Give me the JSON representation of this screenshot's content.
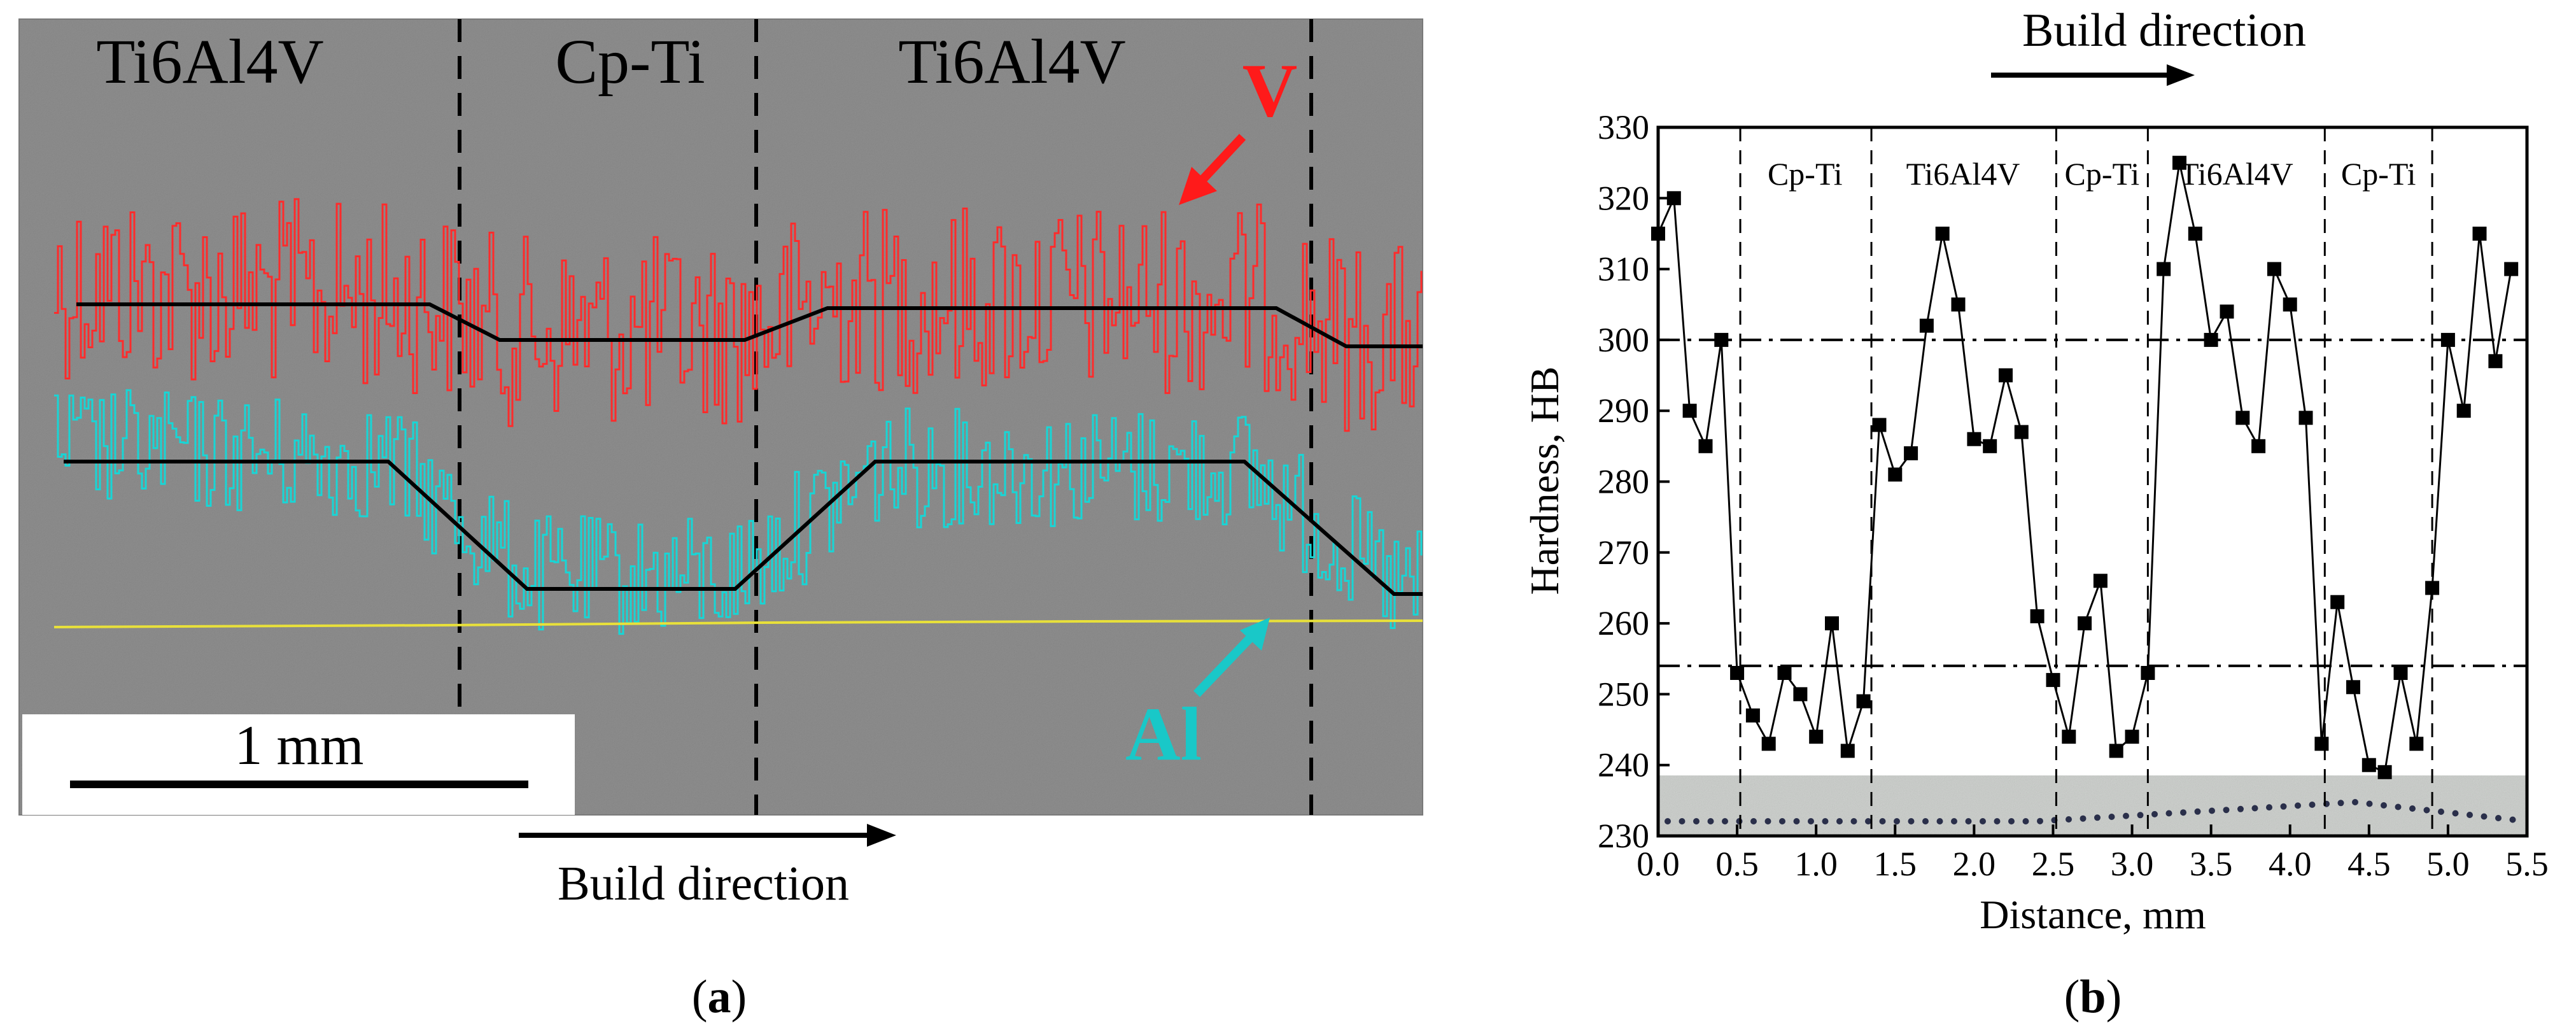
{
  "figure": {
    "panel_a": {
      "caption": "a",
      "regions": [
        "Ti6Al4V",
        "Cp-Ti",
        "Ti6Al4V"
      ],
      "scale_bar": "1 mm",
      "build_direction": "Build direction",
      "element_labels": {
        "v": "V",
        "al": "Al"
      },
      "colors": {
        "v_signal": "#ff2b2b",
        "al_signal": "#17d6d6",
        "baseline": "#e8e03a",
        "background": "#8f8f8f",
        "trend": "#000000"
      }
    },
    "panel_b": {
      "caption": "b"
    }
  },
  "chart_data": [
    {
      "type": "line",
      "title": "",
      "build_direction": "Build direction",
      "xlabel": "Distance, mm",
      "ylabel": "Hardness, HB",
      "xlim": [
        0,
        5.5
      ],
      "ylim": [
        230,
        330
      ],
      "xticks": [
        0.0,
        0.5,
        1.0,
        1.5,
        2.0,
        2.5,
        3.0,
        3.5,
        4.0,
        4.5,
        5.0,
        5.5
      ],
      "xtick_labels": [
        "0.0",
        "0.5",
        "1.0",
        "1.5",
        "2.0",
        "2.5",
        "3.0",
        "3.5",
        "4.0",
        "4.5",
        "5.0",
        "5.5"
      ],
      "yticks": [
        230,
        240,
        250,
        260,
        270,
        280,
        290,
        300,
        310,
        320,
        330
      ],
      "ytick_labels": [
        "230",
        "240",
        "250",
        "260",
        "270",
        "280",
        "290",
        "300",
        "310",
        "320",
        "330"
      ],
      "reference_lines_y": [
        300,
        254
      ],
      "region_boundaries_x": [
        0.52,
        1.35,
        2.52,
        3.1,
        4.22,
        4.9
      ],
      "region_labels": [
        {
          "text": "Cp-Ti",
          "x": 0.93
        },
        {
          "text": "Ti6Al4V",
          "x": 1.93
        },
        {
          "text": "Cp-Ti",
          "x": 2.81
        },
        {
          "text": "Ti6Al4V",
          "x": 3.66
        },
        {
          "text": "Cp-Ti",
          "x": 4.56
        }
      ],
      "series": [
        {
          "name": "Hardness",
          "x": [
            0.0,
            0.1,
            0.2,
            0.3,
            0.4,
            0.5,
            0.6,
            0.7,
            0.8,
            0.9,
            1.0,
            1.1,
            1.2,
            1.3,
            1.4,
            1.5,
            1.6,
            1.7,
            1.8,
            1.9,
            2.0,
            2.1,
            2.2,
            2.3,
            2.4,
            2.5,
            2.6,
            2.7,
            2.8,
            2.9,
            3.0,
            3.1,
            3.2,
            3.3,
            3.4,
            3.5,
            3.6,
            3.7,
            3.8,
            3.9,
            4.0,
            4.1,
            4.2,
            4.3,
            4.4,
            4.5,
            4.6,
            4.7,
            4.8,
            4.9,
            5.0,
            5.1,
            5.2,
            5.3,
            5.4
          ],
          "values": [
            315,
            320,
            290,
            285,
            300,
            253,
            247,
            243,
            253,
            250,
            244,
            260,
            242,
            249,
            288,
            281,
            284,
            302,
            315,
            305,
            286,
            285,
            295,
            287,
            261,
            252,
            244,
            260,
            266,
            242,
            244,
            253,
            310,
            325,
            315,
            300,
            304,
            289,
            285,
            310,
            305,
            289,
            243,
            263,
            251,
            240,
            239,
            253,
            243,
            265,
            300,
            290,
            315,
            297,
            310
          ]
        }
      ]
    }
  ]
}
